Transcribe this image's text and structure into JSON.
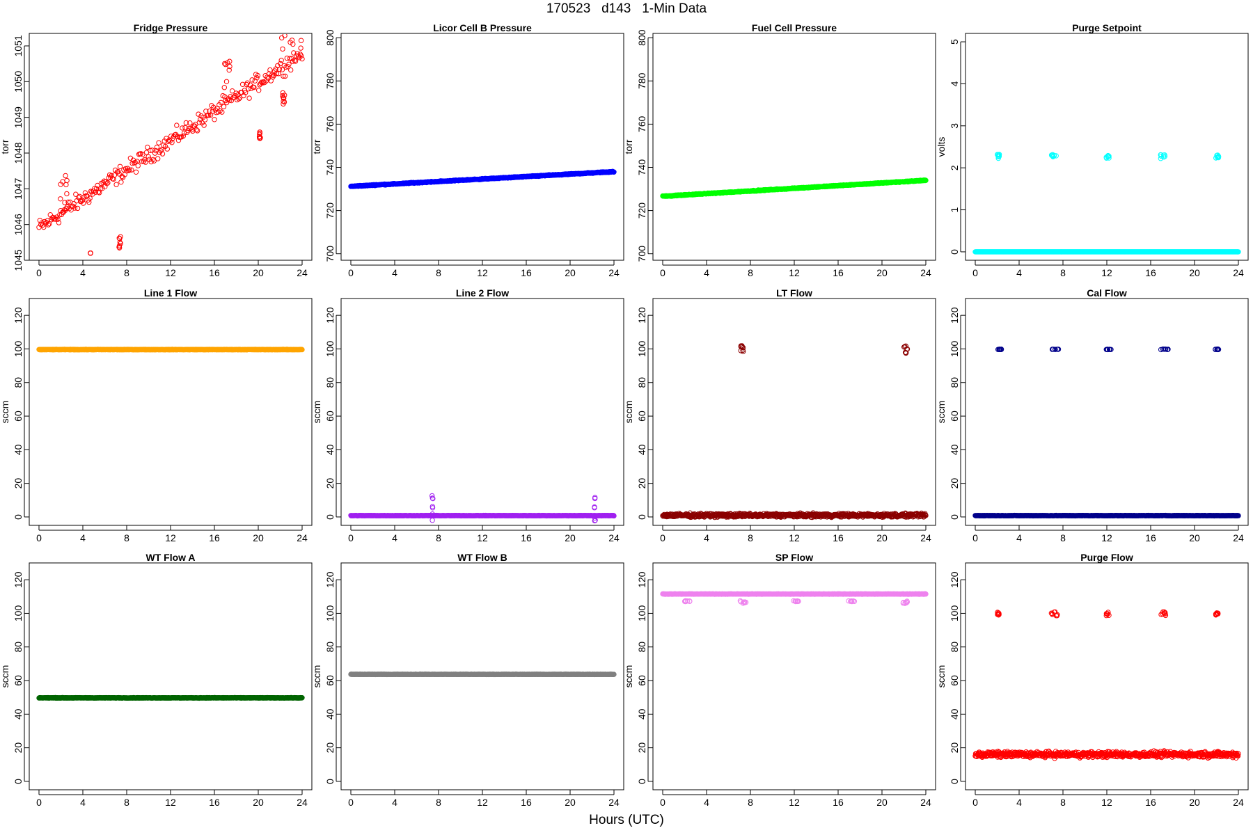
{
  "figure": {
    "title": "170523   d143   1-Min Data",
    "xlabel": "Hours (UTC)"
  },
  "chart_data": [
    {
      "type": "scatter",
      "title": "Fridge Pressure",
      "ylabel": "torr",
      "xlim": [
        0,
        24
      ],
      "ylim": [
        1045,
        1051.35
      ],
      "xticks": [
        0,
        4,
        8,
        12,
        16,
        20,
        24
      ],
      "yticks": [
        1045,
        1046,
        1047,
        1048,
        1049,
        1050,
        1051
      ],
      "color": "#FF0000",
      "series": [
        {
          "base": {
            "kind": "linear",
            "start": 1045.9,
            "end": 1050.8
          },
          "noise": 0.35,
          "count": 280,
          "features": [
            {
              "x": [
                1.8,
                2.6
              ],
              "y": [
                1046.6,
                1047.4
              ]
            },
            {
              "x": [
                4.7,
                4.7
              ],
              "y": [
                1045.2,
                1045.2
              ]
            },
            {
              "x": [
                7.3,
                7.5
              ],
              "y": [
                1045.3,
                1045.9
              ]
            },
            {
              "x": [
                16.9,
                17.4
              ],
              "y": [
                1049.8,
                1050.6
              ]
            },
            {
              "x": [
                20.0,
                20.2
              ],
              "y": [
                1048.4,
                1048.6
              ]
            },
            {
              "x": [
                22.2,
                22.4
              ],
              "y": [
                1049.3,
                1049.7
              ]
            },
            {
              "x": [
                22.0,
                24.0
              ],
              "y": [
                1050.9,
                1051.3
              ]
            }
          ]
        }
      ]
    },
    {
      "type": "scatter",
      "title": "Licor Cell B Pressure",
      "ylabel": "torr",
      "xlim": [
        0,
        24
      ],
      "ylim": [
        697,
        802
      ],
      "xticks": [
        0,
        4,
        8,
        12,
        16,
        20,
        24
      ],
      "yticks": [
        700,
        720,
        740,
        760,
        780,
        800
      ],
      "color": "#0000FF",
      "series": [
        {
          "base": {
            "kind": "linear",
            "start": 731.2,
            "end": 738.0
          },
          "noise": 0.3,
          "count": 720,
          "features": []
        }
      ]
    },
    {
      "type": "scatter",
      "title": "Fuel Cell Pressure",
      "ylabel": "torr",
      "xlim": [
        0,
        24
      ],
      "ylim": [
        697,
        802
      ],
      "xticks": [
        0,
        4,
        8,
        12,
        16,
        20,
        24
      ],
      "yticks": [
        700,
        720,
        740,
        760,
        780,
        800
      ],
      "color": "#00FF00",
      "series": [
        {
          "base": {
            "kind": "linear",
            "start": 726.6,
            "end": 734.0
          },
          "noise": 0.3,
          "count": 720,
          "features": []
        }
      ]
    },
    {
      "type": "scatter",
      "title": "Purge Setpoint",
      "ylabel": "volts",
      "xlim": [
        0,
        24
      ],
      "ylim": [
        -0.2,
        5.2
      ],
      "xticks": [
        0,
        4,
        8,
        12,
        16,
        20,
        24
      ],
      "yticks": [
        0,
        1,
        2,
        3,
        4,
        5
      ],
      "color": "#00FFFF",
      "series": [
        {
          "base": {
            "kind": "linear",
            "start": 0,
            "end": 0
          },
          "noise": 0,
          "count": 720,
          "features": [
            {
              "x": [
                2.0,
                2.2
              ],
              "y": [
                2.22,
                2.32
              ]
            },
            {
              "x": [
                6.9,
                7.4
              ],
              "y": [
                2.22,
                2.32
              ]
            },
            {
              "x": [
                11.9,
                12.2
              ],
              "y": [
                2.22,
                2.32
              ]
            },
            {
              "x": [
                16.9,
                17.3
              ],
              "y": [
                2.22,
                2.32
              ]
            },
            {
              "x": [
                21.9,
                22.2
              ],
              "y": [
                2.22,
                2.32
              ]
            }
          ]
        }
      ]
    },
    {
      "type": "scatter",
      "title": "Line 1 Flow",
      "ylabel": "sccm",
      "xlim": [
        0,
        24
      ],
      "ylim": [
        -5,
        130
      ],
      "xticks": [
        0,
        4,
        8,
        12,
        16,
        20,
        24
      ],
      "yticks": [
        0,
        20,
        40,
        60,
        80,
        100,
        120
      ],
      "color": "#FFA500",
      "series": [
        {
          "base": {
            "kind": "linear",
            "start": 99.6,
            "end": 99.6
          },
          "noise": 0.2,
          "count": 720,
          "features": []
        }
      ]
    },
    {
      "type": "scatter",
      "title": "Line 2 Flow",
      "ylabel": "sccm",
      "xlim": [
        0,
        24
      ],
      "ylim": [
        -5,
        130
      ],
      "xticks": [
        0,
        4,
        8,
        12,
        16,
        20,
        24
      ],
      "yticks": [
        0,
        20,
        40,
        60,
        80,
        100,
        120
      ],
      "color": "#A020F0",
      "series": [
        {
          "base": {
            "kind": "linear",
            "start": 0.8,
            "end": 0.8
          },
          "noise": 0.2,
          "count": 720,
          "features": [
            {
              "x": [
                7.4,
                7.5
              ],
              "y": [
                -3.0,
                13.5
              ]
            },
            {
              "x": [
                22.2,
                22.3
              ],
              "y": [
                -3.0,
                13.5
              ]
            }
          ]
        }
      ]
    },
    {
      "type": "scatter",
      "title": "LT Flow",
      "ylabel": "sccm",
      "xlim": [
        0,
        24
      ],
      "ylim": [
        -5,
        130
      ],
      "xticks": [
        0,
        4,
        8,
        12,
        16,
        20,
        24
      ],
      "yticks": [
        0,
        20,
        40,
        60,
        80,
        100,
        120
      ],
      "color": "#8B0000",
      "series": [
        {
          "base": {
            "kind": "linear",
            "start": 1.0,
            "end": 1.0
          },
          "noise": 1.6,
          "count": 720,
          "features": [
            {
              "x": [
                7.1,
                7.4
              ],
              "y": [
                97.0,
                102.0
              ]
            },
            {
              "x": [
                22.0,
                22.4
              ],
              "y": [
                97.0,
                102.0
              ]
            }
          ]
        }
      ]
    },
    {
      "type": "scatter",
      "title": "Cal Flow",
      "ylabel": "sccm",
      "xlim": [
        0,
        24
      ],
      "ylim": [
        -5,
        130
      ],
      "xticks": [
        0,
        4,
        8,
        12,
        16,
        20,
        24
      ],
      "yticks": [
        0,
        20,
        40,
        60,
        80,
        100,
        120
      ],
      "color": "#00008B",
      "series": [
        {
          "base": {
            "kind": "linear",
            "start": 0.8,
            "end": 0.8
          },
          "noise": 0.2,
          "count": 720,
          "features": [
            {
              "x": [
                2.0,
                2.4
              ],
              "y": [
                99.6,
                99.9
              ]
            },
            {
              "x": [
                6.9,
                7.6
              ],
              "y": [
                99.6,
                99.9
              ]
            },
            {
              "x": [
                11.9,
                12.4
              ],
              "y": [
                99.6,
                99.9
              ]
            },
            {
              "x": [
                16.9,
                17.6
              ],
              "y": [
                99.6,
                99.9
              ]
            },
            {
              "x": [
                21.9,
                22.4
              ],
              "y": [
                99.6,
                99.9
              ]
            }
          ]
        }
      ]
    },
    {
      "type": "scatter",
      "title": "WT Flow A",
      "ylabel": "sccm",
      "xlim": [
        0,
        24
      ],
      "ylim": [
        -5,
        130
      ],
      "xticks": [
        0,
        4,
        8,
        12,
        16,
        20,
        24
      ],
      "yticks": [
        0,
        20,
        40,
        60,
        80,
        100,
        120
      ],
      "color": "#006400",
      "series": [
        {
          "base": {
            "kind": "linear",
            "start": 49.7,
            "end": 49.7
          },
          "noise": 0.2,
          "count": 720,
          "features": []
        }
      ]
    },
    {
      "type": "scatter",
      "title": "WT Flow B",
      "ylabel": "sccm",
      "xlim": [
        0,
        24
      ],
      "ylim": [
        -5,
        130
      ],
      "xticks": [
        0,
        4,
        8,
        12,
        16,
        20,
        24
      ],
      "yticks": [
        0,
        20,
        40,
        60,
        80,
        100,
        120
      ],
      "color": "#808080",
      "series": [
        {
          "base": {
            "kind": "linear",
            "start": 63.7,
            "end": 63.7
          },
          "noise": 0.15,
          "count": 720,
          "features": []
        }
      ]
    },
    {
      "type": "scatter",
      "title": "SP Flow",
      "ylabel": "sccm",
      "xlim": [
        0,
        24
      ],
      "ylim": [
        -5,
        130
      ],
      "xticks": [
        0,
        4,
        8,
        12,
        16,
        20,
        24
      ],
      "yticks": [
        0,
        20,
        40,
        60,
        80,
        100,
        120
      ],
      "color": "#EE82EE",
      "series": [
        {
          "base": {
            "kind": "linear",
            "start": 111.5,
            "end": 111.5
          },
          "noise": 0.2,
          "count": 720,
          "features": [
            {
              "x": [
                2.0,
                2.5
              ],
              "y": [
                107.0,
                107.5
              ]
            },
            {
              "x": [
                7.0,
                7.6
              ],
              "y": [
                105.5,
                107.5
              ]
            },
            {
              "x": [
                11.9,
                12.4
              ],
              "y": [
                107.0,
                107.5
              ]
            },
            {
              "x": [
                16.9,
                17.5
              ],
              "y": [
                107.0,
                107.5
              ]
            },
            {
              "x": [
                21.9,
                22.4
              ],
              "y": [
                105.5,
                107.5
              ]
            }
          ]
        }
      ]
    },
    {
      "type": "scatter",
      "title": "Purge Flow",
      "ylabel": "sccm",
      "xlim": [
        0,
        24
      ],
      "ylim": [
        -5,
        130
      ],
      "xticks": [
        0,
        4,
        8,
        12,
        16,
        20,
        24
      ],
      "yticks": [
        0,
        20,
        40,
        60,
        80,
        100,
        120
      ],
      "color": "#FF0000",
      "series": [
        {
          "base": {
            "kind": "linear",
            "start": 16.0,
            "end": 16.0
          },
          "noise": 2.5,
          "count": 720,
          "features": [
            {
              "x": [
                2.0,
                2.2
              ],
              "y": [
                98.5,
                101.0
              ]
            },
            {
              "x": [
                6.9,
                7.6
              ],
              "y": [
                98.5,
                101.5
              ]
            },
            {
              "x": [
                11.9,
                12.2
              ],
              "y": [
                98.5,
                101.0
              ]
            },
            {
              "x": [
                16.9,
                17.4
              ],
              "y": [
                98.5,
                101.0
              ]
            },
            {
              "x": [
                21.9,
                22.2
              ],
              "y": [
                99.0,
                100.5
              ]
            }
          ]
        }
      ]
    }
  ]
}
